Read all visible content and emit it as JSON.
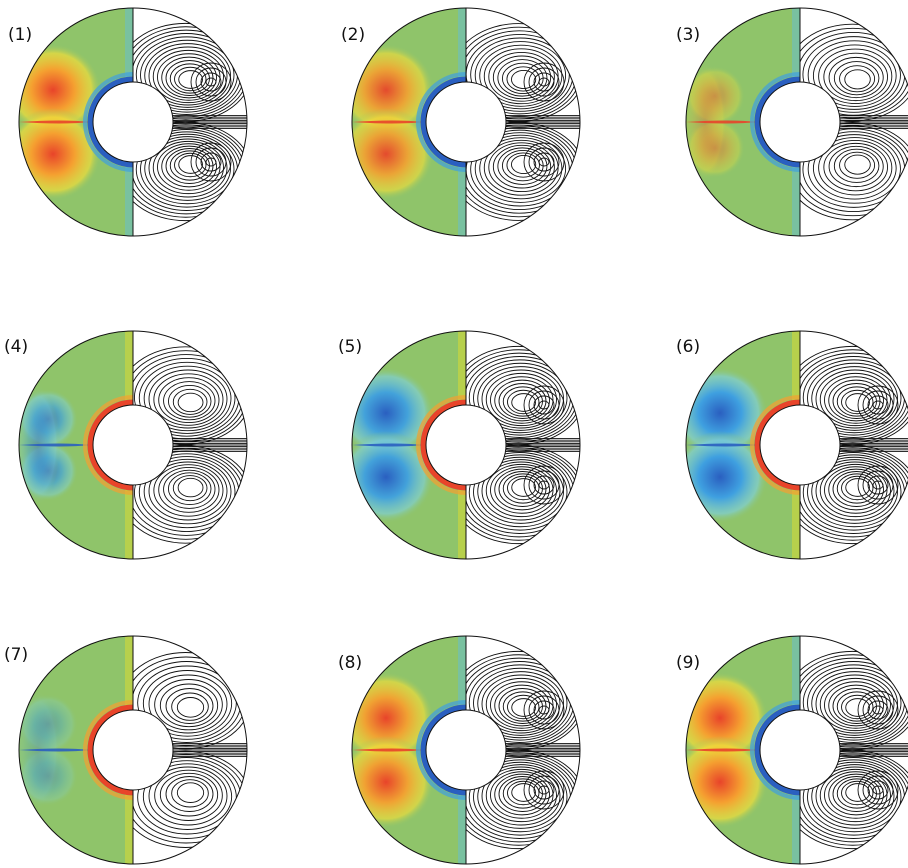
{
  "figure": {
    "panels": [
      {
        "label": "(1)",
        "regime": "warm",
        "strength": 1.0,
        "lobes": 2
      },
      {
        "label": "(2)",
        "regime": "warm",
        "strength": 0.9,
        "lobes": 2
      },
      {
        "label": "(3)",
        "regime": "warm",
        "strength": 0.45,
        "lobes": 1
      },
      {
        "label": "(4)",
        "regime": "cool",
        "strength": 0.7,
        "lobes": 1
      },
      {
        "label": "(5)",
        "regime": "cool",
        "strength": 0.95,
        "lobes": 2
      },
      {
        "label": "(6)",
        "regime": "cool",
        "strength": 1.0,
        "lobes": 2
      },
      {
        "label": "(7)",
        "regime": "cool",
        "strength": 0.35,
        "lobes": 1
      },
      {
        "label": "(8)",
        "regime": "warm",
        "strength": 0.95,
        "lobes": 2
      },
      {
        "label": "(9)",
        "regime": "warm",
        "strength": 1.0,
        "lobes": 2
      }
    ],
    "colors": {
      "background_field": "#8fc46a",
      "warm_core": "#e8442a",
      "warm_mid": "#f5a030",
      "warm_outer": "#f2dd3a",
      "cool_core": "#2a5fc0",
      "cool_mid": "#3fa0e0",
      "cool_outer": "#7fcfd8",
      "streamline": "#111111"
    }
  }
}
